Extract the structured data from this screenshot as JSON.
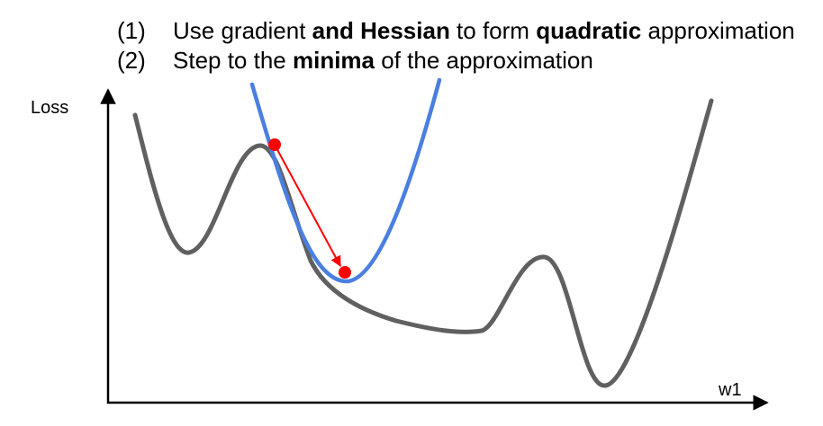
{
  "steps": [
    {
      "number": "(1)",
      "parts": [
        {
          "text": "Use gradient ",
          "bold": false
        },
        {
          "text": "and Hessian",
          "bold": true
        },
        {
          "text": " to form ",
          "bold": false
        },
        {
          "text": "quadratic",
          "bold": true
        },
        {
          "text": " approximation",
          "bold": false
        }
      ]
    },
    {
      "number": "(2)",
      "parts": [
        {
          "text": "Step to the ",
          "bold": false
        },
        {
          "text": "minima",
          "bold": true
        },
        {
          "text": " of the approximation",
          "bold": false
        }
      ]
    }
  ],
  "axes": {
    "y_label": "Loss",
    "x_label": "w1"
  },
  "colors": {
    "loss_curve": "#606060",
    "quadratic": "#4a7fe0",
    "step": "#ff0000",
    "axis": "#000000"
  }
}
